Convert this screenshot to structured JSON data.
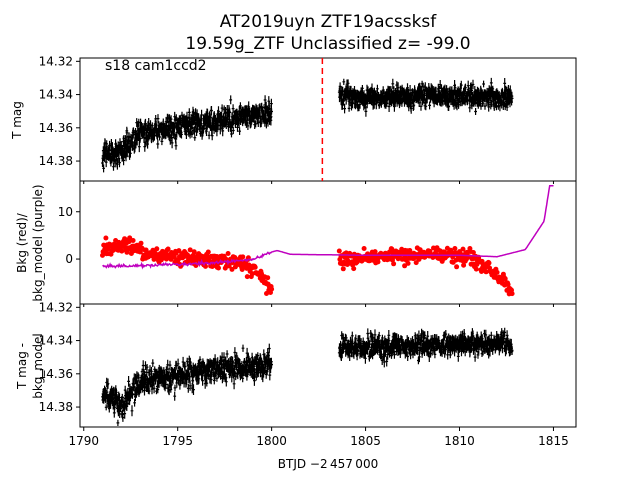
{
  "chart_data": {
    "type": "scatter",
    "title_line1": "AT2019uyn  ZTF19acssksf",
    "title_line2": "19.59g_ZTF Unclassified z= -99.0",
    "annotation": "s18 cam1ccd2",
    "xlabel": "BTJD −2 457 000",
    "xlim": [
      1789.8,
      1816.2
    ],
    "xticks": [
      1790,
      1795,
      1800,
      1805,
      1810,
      1815
    ],
    "xtick_labels": [
      "1790",
      "1795",
      "1800",
      "1805",
      "1810",
      "1815"
    ],
    "colors": {
      "data": "#000000",
      "bkg": "#ff0000",
      "bkg_model": "#bf00bf",
      "marker_line": "#ff0000"
    },
    "panels": [
      {
        "id": "top",
        "ylabel": "T mag",
        "ylim": [
          14.392,
          14.318
        ],
        "yticks": [
          14.32,
          14.34,
          14.36,
          14.38
        ],
        "ytick_labels": [
          "14.32",
          "14.34",
          "14.36",
          "14.38"
        ],
        "vline_x": 1802.7,
        "segments": [
          {
            "x_start": 1791.0,
            "x_end": 1800.0,
            "y_start": 14.374,
            "y_end": 14.352,
            "dip_center": 1791.8,
            "dip_depth": 0.008,
            "scatter": 0.0065
          },
          {
            "x_start": 1803.6,
            "x_end": 1812.8,
            "y_start": 14.342,
            "y_end": 14.341,
            "dip_center": 0,
            "dip_depth": 0,
            "scatter": 0.0055
          }
        ]
      },
      {
        "id": "middle",
        "ylabel_line1": "Bkg (red)/",
        "ylabel_line2": "bkg_model (purple)",
        "ylim": [
          -9.5,
          16.5
        ],
        "yticks": [
          0,
          10
        ],
        "ytick_labels": [
          "0",
          "10"
        ],
        "bkg_segments": [
          {
            "x": [
              1791.0,
              1792.0,
              1793.5,
              1796.0,
              1798.5,
              1799.5,
              1800.0
            ],
            "y": [
              2.0,
              3.0,
              1.0,
              0.0,
              -0.5,
              -4.0,
              -7.0
            ],
            "scatter": 0.8
          },
          {
            "x": [
              1803.6,
              1806.0,
              1809.5,
              1810.5,
              1811.8,
              1812.8
            ],
            "y": [
              0.0,
              0.5,
              1.0,
              0.5,
              -3.0,
              -6.5
            ],
            "scatter": 0.8
          }
        ],
        "bkg_model": {
          "x": [
            1791.0,
            1792.0,
            1794.0,
            1797.0,
            1799.0,
            1800.0,
            1800.3,
            1801.0,
            1805.0,
            1810.0,
            1812.0,
            1813.5,
            1814.5,
            1814.8,
            1815.0
          ],
          "y": [
            -1.5,
            -1.5,
            -1.2,
            -0.8,
            0.0,
            1.5,
            1.8,
            1.0,
            0.8,
            0.8,
            0.5,
            2.0,
            8.0,
            15.5,
            15.5
          ]
        }
      },
      {
        "id": "bottom",
        "ylabel_line1": "T mag -",
        "ylabel_line2": "bkg_model",
        "ylim": [
          14.392,
          14.318
        ],
        "yticks": [
          14.32,
          14.34,
          14.36,
          14.38
        ],
        "ytick_labels": [
          "14.32",
          "14.34",
          "14.36",
          "14.38"
        ],
        "segments": [
          {
            "x_start": 1791.0,
            "x_end": 1800.0,
            "y_start": 14.372,
            "y_end": 14.355,
            "dip_center": 1792.0,
            "dip_depth": 0.012,
            "scatter": 0.0065
          },
          {
            "x_start": 1803.6,
            "x_end": 1812.8,
            "y_start": 14.345,
            "y_end": 14.342,
            "dip_center": 0,
            "dip_depth": 0,
            "scatter": 0.0055
          }
        ]
      }
    ]
  }
}
